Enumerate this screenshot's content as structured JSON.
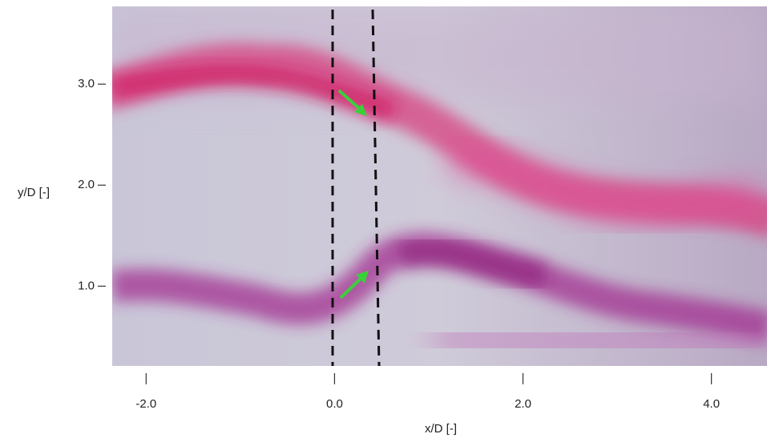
{
  "chart_data": {
    "type": "image",
    "x_label": "x/D [-]",
    "y_label": "y/D [-]",
    "xlim": [
      -2.36,
      4.59
    ],
    "ylim": [
      0.21,
      3.77
    ],
    "xticks": [
      {
        "value": -2,
        "label": "-2.0"
      },
      {
        "value": 0,
        "label": "0.0"
      },
      {
        "value": 2,
        "label": "2.0"
      },
      {
        "value": 4,
        "label": "4.0"
      }
    ],
    "yticks": [
      {
        "value": 1,
        "label": "1.0"
      },
      {
        "value": 2,
        "label": "2.0"
      },
      {
        "value": 3,
        "label": "3.0"
      }
    ]
  }
}
